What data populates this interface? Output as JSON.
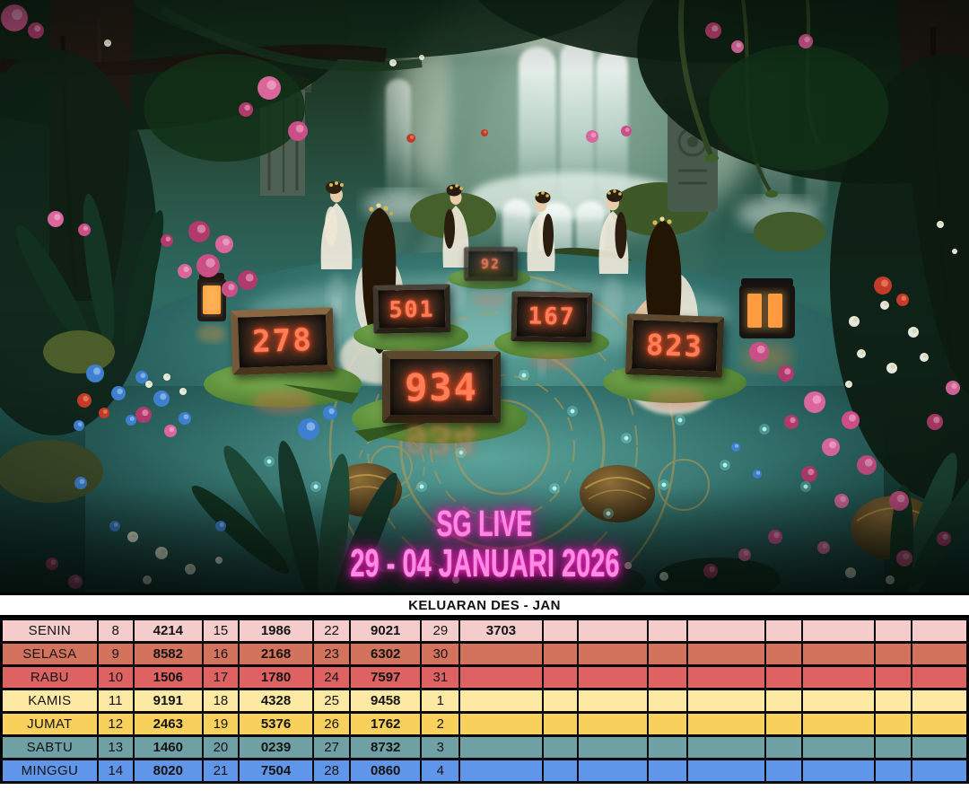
{
  "scene": {
    "title_line1": "SG LIVE",
    "title_line2": "29 - 04 JANUARI 2026",
    "neon_color": "#ff3fd1",
    "digit_color": "#ff7e58",
    "boxes": [
      {
        "value": "278"
      },
      {
        "value": "501"
      },
      {
        "value": "92"
      },
      {
        "value": "167"
      },
      {
        "value": "823"
      },
      {
        "value": "934"
      }
    ]
  },
  "table": {
    "title": "KELUARAN DES - JAN",
    "rows": [
      {
        "day": "SENIN",
        "color": "#f4cccc",
        "cells": [
          [
            "8",
            "4214"
          ],
          [
            "15",
            "1986"
          ],
          [
            "22",
            "9021"
          ],
          [
            "29",
            "3703"
          ],
          [
            "",
            ""
          ],
          [
            "",
            ""
          ],
          [
            "",
            ""
          ],
          [
            "",
            ""
          ]
        ]
      },
      {
        "day": "SELASA",
        "color": "#d3735e",
        "cells": [
          [
            "9",
            "8582"
          ],
          [
            "16",
            "2168"
          ],
          [
            "23",
            "6302"
          ],
          [
            "30",
            ""
          ],
          [
            "",
            ""
          ],
          [
            "",
            ""
          ],
          [
            "",
            ""
          ],
          [
            "",
            ""
          ]
        ]
      },
      {
        "day": "RABU",
        "color": "#de6262",
        "cells": [
          [
            "10",
            "1506"
          ],
          [
            "17",
            "1780"
          ],
          [
            "24",
            "7597"
          ],
          [
            "31",
            ""
          ],
          [
            "",
            ""
          ],
          [
            "",
            ""
          ],
          [
            "",
            ""
          ],
          [
            "",
            ""
          ]
        ]
      },
      {
        "day": "KAMIS",
        "color": "#fde9a3",
        "cells": [
          [
            "11",
            "9191"
          ],
          [
            "18",
            "4328"
          ],
          [
            "25",
            "9458"
          ],
          [
            "1",
            ""
          ],
          [
            "",
            ""
          ],
          [
            "",
            ""
          ],
          [
            "",
            ""
          ],
          [
            "",
            ""
          ]
        ]
      },
      {
        "day": "JUMAT",
        "color": "#f8d05c",
        "cells": [
          [
            "12",
            "2463"
          ],
          [
            "19",
            "5376"
          ],
          [
            "26",
            "1762"
          ],
          [
            "2",
            ""
          ],
          [
            "",
            ""
          ],
          [
            "",
            ""
          ],
          [
            "",
            ""
          ],
          [
            "",
            ""
          ]
        ]
      },
      {
        "day": "SABTU",
        "color": "#6fa1a4",
        "cells": [
          [
            "13",
            "1460"
          ],
          [
            "20",
            "0239"
          ],
          [
            "27",
            "8732"
          ],
          [
            "3",
            ""
          ],
          [
            "",
            ""
          ],
          [
            "",
            ""
          ],
          [
            "",
            ""
          ],
          [
            "",
            ""
          ]
        ]
      },
      {
        "day": "MINGGU",
        "color": "#6096ea",
        "cells": [
          [
            "14",
            "8020"
          ],
          [
            "21",
            "7504"
          ],
          [
            "28",
            "0860"
          ],
          [
            "4",
            ""
          ],
          [
            "",
            ""
          ],
          [
            "",
            ""
          ],
          [
            "",
            ""
          ],
          [
            "",
            ""
          ]
        ]
      }
    ]
  }
}
